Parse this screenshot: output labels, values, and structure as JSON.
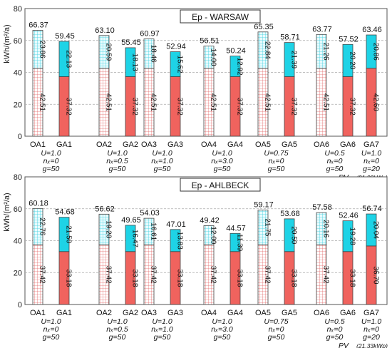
{
  "figure": {
    "pv_label": "PV",
    "pv_value": "(21,33kWp)"
  },
  "chart_data": [
    {
      "type": "bar",
      "stacked": true,
      "title": "Ep - WARSAW",
      "ylabel": "kWh/(m²/a)",
      "ylim": [
        0,
        80
      ],
      "yticks": [
        0,
        20,
        40,
        60,
        80
      ],
      "grid": true,
      "categories": [
        "OA1",
        "GA1",
        "OA2",
        "GA2",
        "OA3",
        "GA3",
        "OA4",
        "GA4",
        "OA5",
        "GA5",
        "OA6",
        "GA6",
        "GA7"
      ],
      "series": [
        {
          "values": [
            42.51,
            37.32,
            42.51,
            37.32,
            42.51,
            37.32,
            42.51,
            37.32,
            42.51,
            37.32,
            42.51,
            37.32,
            42.6
          ]
        },
        {
          "values": [
            23.86,
            22.13,
            20.59,
            18.13,
            18.46,
            15.62,
            14.0,
            12.92,
            22.84,
            21.39,
            21.26,
            20.2,
            20.86
          ]
        }
      ],
      "bottom_labels": [
        "42.51",
        "37.32",
        "42.51",
        "37.32",
        "42.51",
        "37.32",
        "42.51",
        "37.32",
        "42.51",
        "37.32",
        "42.51",
        "37.32",
        "42.60"
      ],
      "top_labels": [
        "23.86",
        "22.13",
        "20.59",
        "18.13",
        "18.46",
        "15.62",
        "14.00",
        "12.92",
        "22.84",
        "21.39",
        "21.26",
        "20.20",
        "20.86"
      ],
      "total_labels": [
        "66.37",
        "59.45",
        "63.10",
        "55.45",
        "60.97",
        "52.94",
        "56.51",
        "50.24",
        "65.35",
        "58.71",
        "63.77",
        "57.52",
        "63.46"
      ],
      "variants": [
        {
          "u": "U=1.0",
          "n": "nₓ=0",
          "g": "g=50"
        },
        {
          "u": "U=1.0",
          "n": "nₓ=0.5",
          "g": "g=50"
        },
        {
          "u": "U=1.0",
          "n": "nₓ=1.0",
          "g": "g=50"
        },
        {
          "u": "U=1.0",
          "n": "nₓ=3.0",
          "g": "g=50"
        },
        {
          "u": "U=0.75",
          "n": "nₓ=0",
          "g": "g=50"
        },
        {
          "u": "U=0.5",
          "n": "nₓ=0",
          "g": "g=50"
        },
        {
          "u": "U=1.0",
          "n": "nₓ=0",
          "g": "g=20"
        }
      ],
      "colors": {
        "oa_bottom": "#f08c8c",
        "oa_top": "#8ae6ee",
        "ga_bottom": "#f0635e",
        "ga_top": "#1ed3e6"
      }
    },
    {
      "type": "bar",
      "stacked": true,
      "title": "Ep - AHLBECK",
      "ylabel": "kWh/(m²/a)",
      "ylim": [
        0,
        80
      ],
      "yticks": [
        0,
        20,
        40,
        60,
        80
      ],
      "grid": true,
      "categories": [
        "OA1",
        "GA1",
        "OA2",
        "GA2",
        "OA3",
        "GA3",
        "OA4",
        "GA4",
        "OA5",
        "GA5",
        "OA6",
        "GA6",
        "GA7"
      ],
      "series": [
        {
          "values": [
            37.42,
            33.18,
            37.42,
            33.18,
            37.42,
            33.18,
            37.42,
            33.18,
            37.42,
            33.18,
            37.42,
            33.18,
            36.7
          ]
        },
        {
          "values": [
            22.76,
            21.5,
            19.2,
            16.47,
            16.61,
            13.83,
            12.0,
            11.39,
            21.75,
            20.5,
            20.16,
            19.28,
            20.04
          ]
        }
      ],
      "bottom_labels": [
        "37.42",
        "33.18",
        "37.42",
        "33.18",
        "37.42",
        "33.18",
        "37.42",
        "33.18",
        "37.42",
        "33.18",
        "37.42",
        "33.18",
        "36.70"
      ],
      "top_labels": [
        "22.76",
        "21.50",
        "19.20",
        "16.47",
        "16.61",
        "13.83",
        "12.00",
        "11.39",
        "21.75",
        "20.50",
        "20.16",
        "19.28",
        "20.04"
      ],
      "total_labels": [
        "60.18",
        "54.68",
        "56.62",
        "49.65",
        "54.03",
        "47.01",
        "49.42",
        "44.57",
        "59.17",
        "53.68",
        "57.58",
        "52.46",
        "56.74"
      ],
      "variants": [
        {
          "u": "U=1.0",
          "n": "nₓ=0",
          "g": "g=50"
        },
        {
          "u": "U=1.0",
          "n": "nₓ=0.5",
          "g": "g=50"
        },
        {
          "u": "U=1.0",
          "n": "nₓ=1.0",
          "g": "g=50"
        },
        {
          "u": "U=1.0",
          "n": "nₓ=3.0",
          "g": "g=50"
        },
        {
          "u": "U=0.75",
          "n": "nₓ=0",
          "g": "g=50"
        },
        {
          "u": "U=0.5",
          "n": "nₓ=0",
          "g": "g=50"
        },
        {
          "u": "U=1.0",
          "n": "nₓ=0",
          "g": "g=20"
        }
      ],
      "colors": {
        "oa_bottom": "#f08c8c",
        "oa_top": "#8ae6ee",
        "ga_bottom": "#f0635e",
        "ga_top": "#1ed3e6"
      }
    }
  ]
}
